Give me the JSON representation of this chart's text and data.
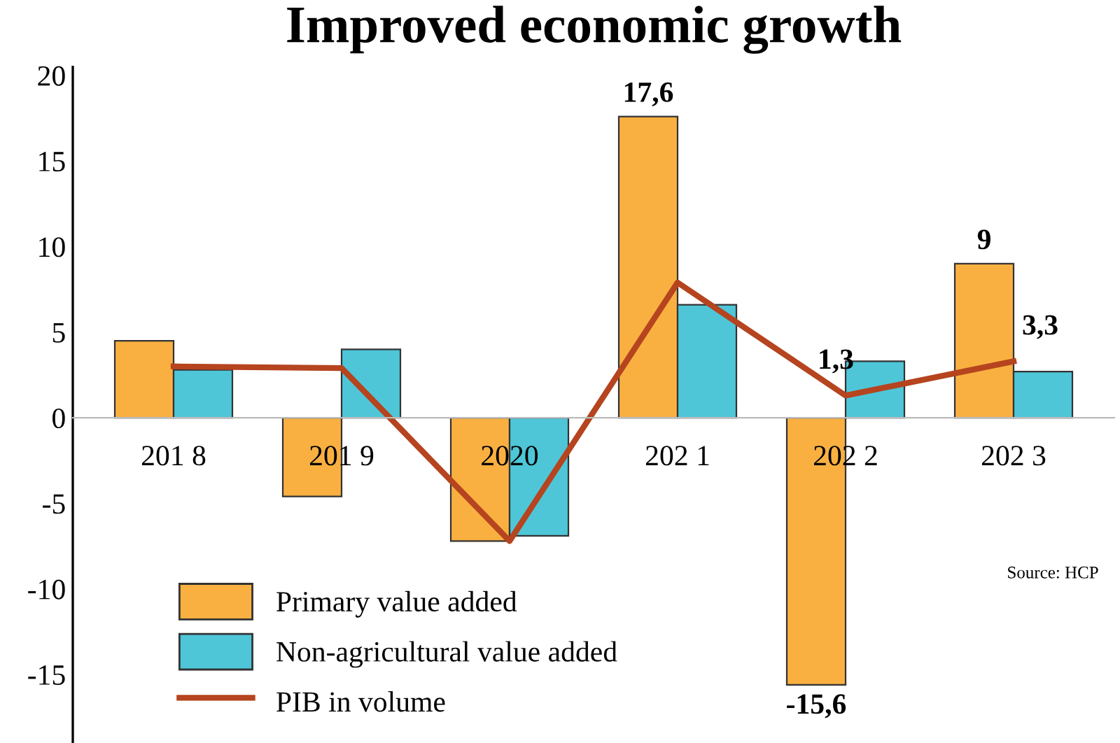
{
  "chart_data": {
    "type": "bar",
    "title": "Improved economic growth",
    "categories": [
      "201 8",
      "201 9",
      "2020",
      "202 1",
      "202 2",
      "202 3"
    ],
    "series": [
      {
        "name": "Primary value added",
        "color": "#f9b041",
        "values": [
          4.5,
          -4.6,
          -7.2,
          17.6,
          -15.6,
          9
        ],
        "value_labels": [
          null,
          null,
          null,
          "17,6",
          "-15,6",
          "9"
        ]
      },
      {
        "name": "Non-agricultural value added",
        "color": "#4ec6d8",
        "values": [
          2.8,
          4.0,
          -6.9,
          6.6,
          3.3,
          2.7
        ]
      },
      {
        "name": "PIB in volume",
        "type": "line",
        "color": "#b5441f",
        "values": [
          3.0,
          2.9,
          -7.2,
          7.9,
          1.3,
          3.3
        ],
        "value_labels": [
          null,
          null,
          null,
          null,
          "1,3",
          "3,3"
        ]
      }
    ],
    "ylim": [
      -19,
      20.5
    ],
    "yticks": [
      -15,
      -10,
      -5,
      0,
      5,
      10,
      15,
      20
    ],
    "annotations": [
      "Source: HCP"
    ],
    "legend": "bottom left",
    "grid": false
  }
}
